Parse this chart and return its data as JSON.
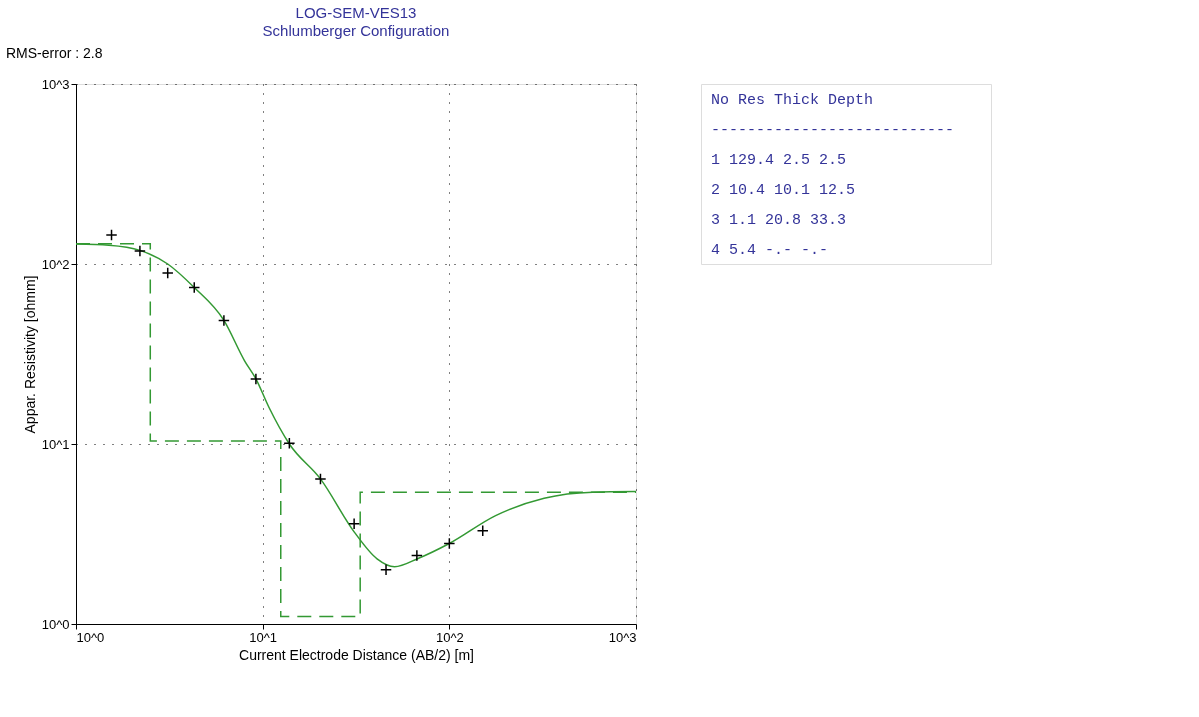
{
  "chart_data": [
    {
      "type": "line",
      "title": "LOG-SEM-VES13",
      "subtitle": "Schlumberger Configuration",
      "xlabel": "Current Electrode Distance (AB/2) [m]",
      "ylabel": "Appar. Resistivity [ohmm]",
      "log": "xy",
      "grid": true,
      "xlim": [
        1,
        1000
      ],
      "ylim": [
        1,
        1000
      ],
      "xticks": [
        {
          "value": 1,
          "label": "10^0"
        },
        {
          "value": 10,
          "label": "10^1"
        },
        {
          "value": 100,
          "label": "10^2"
        },
        {
          "value": 1000,
          "label": "10^3"
        }
      ],
      "yticks": [
        {
          "value": 1,
          "label": "10^0"
        },
        {
          "value": 10,
          "label": "10^1"
        },
        {
          "value": 100,
          "label": "10^2"
        },
        {
          "value": 1000,
          "label": "10^3"
        }
      ],
      "annotations": [
        "RMS-error :  2.8"
      ],
      "series": [
        {
          "type": "step",
          "color": "#339933",
          "line_style": "dashed",
          "x": [
            1,
            2.5,
            12.5,
            33.3,
            1000
          ],
          "values": [
            129.4,
            10.4,
            1.1,
            5.4,
            5.4
          ]
        },
        {
          "type": "line",
          "color": "#339933",
          "line_style": "solid",
          "x": [
            1,
            1.5,
            2.2,
            3.1,
            4.3,
            6.2,
            8.0,
            9.2,
            10.8,
            13.9,
            20.4,
            30.9,
            41,
            50.9,
            68.5,
            100,
            177,
            322,
            585,
            1000
          ],
          "values": [
            129,
            127,
            119,
            100,
            74,
            48.6,
            29,
            23,
            16,
            10,
            6.4,
            3.25,
            2.3,
            2.08,
            2.32,
            2.8,
            4.0,
            5.0,
            5.4,
            5.44
          ]
        },
        {
          "type": "scatter",
          "color": "#000000",
          "marker": "cross",
          "x": [
            1.55,
            2.2,
            3.1,
            4.3,
            6.2,
            9.2,
            13.9,
            20.4,
            30.9,
            45.8,
            67,
            100,
            151
          ],
          "values": [
            145,
            118,
            89,
            74,
            48.6,
            23,
            10.1,
            6.4,
            3.6,
            2.0,
            2.4,
            2.8,
            3.3
          ]
        }
      ]
    },
    {
      "type": "other",
      "annotations": [
        "No    Res  Thick  Depth",
        "---------------------------",
        " 1  129.4    2.5    2.5",
        " 2   10.4   10.1   12.5",
        " 3    1.1   20.8   33.3",
        " 4    5.4    -.-     -.-"
      ]
    }
  ]
}
